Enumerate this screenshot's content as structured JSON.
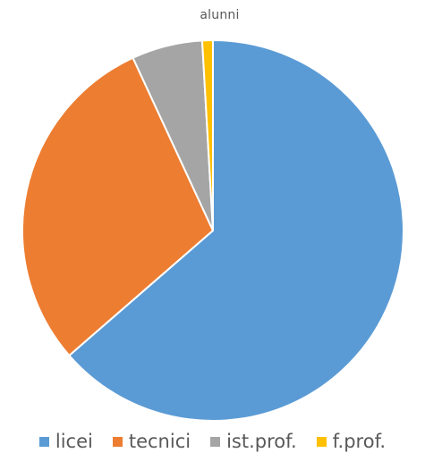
{
  "chart_data": {
    "type": "pie",
    "title": "alunni",
    "categories": [
      "licei",
      "tecnici",
      "ist.prof.",
      "f.prof."
    ],
    "values": [
      63.6,
      29.5,
      6.0,
      0.9
    ],
    "value_unit": "percent (estimated)",
    "colors": [
      "#5B9BD5",
      "#ED7D31",
      "#A5A5A5",
      "#FFC000"
    ],
    "start_angle_deg": 0,
    "direction": "clockwise",
    "legend_position": "bottom"
  }
}
